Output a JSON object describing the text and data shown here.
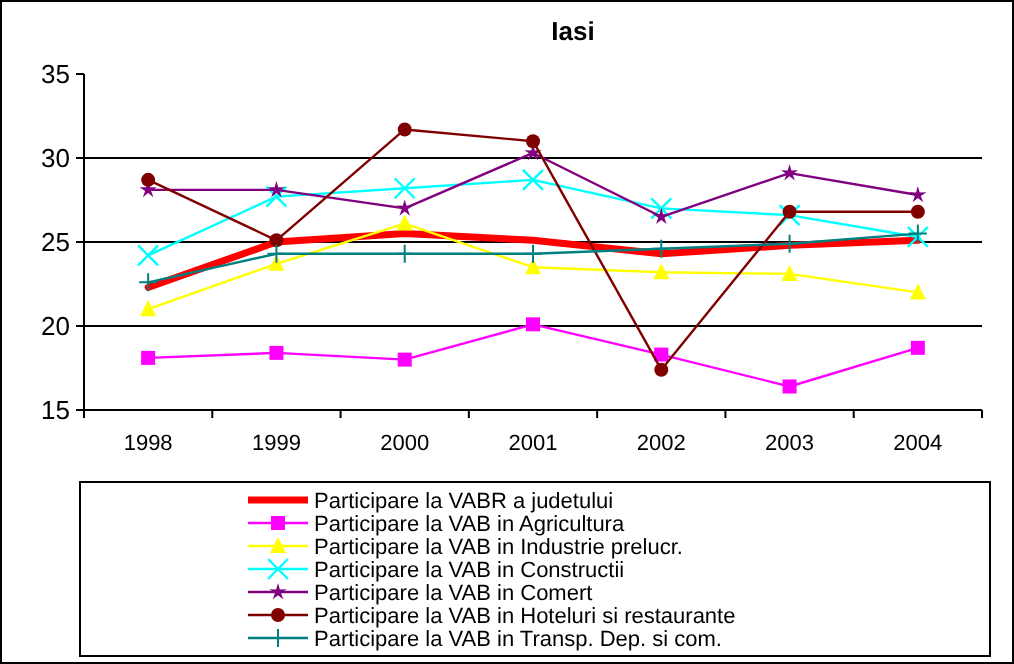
{
  "chart_data": {
    "type": "line",
    "title": "Iasi",
    "categories": [
      "1998",
      "1999",
      "2000",
      "2001",
      "2002",
      "2003",
      "2004"
    ],
    "ylim": [
      15,
      35
    ],
    "yticks": [
      15,
      20,
      25,
      30,
      35
    ],
    "grid": "y",
    "legend": "bottom",
    "series": [
      {
        "name": "Participare la VABR a judetului",
        "color": "#ff0000",
        "marker": "none",
        "values": [
          22.3,
          25.0,
          25.5,
          25.1,
          24.3,
          24.8,
          25.1
        ]
      },
      {
        "name": "Participare la VAB in Agricultura",
        "color": "#ff00ff",
        "marker": "square",
        "values": [
          18.1,
          18.4,
          18.0,
          20.1,
          18.3,
          16.4,
          18.7
        ]
      },
      {
        "name": "Participare la VAB in Industrie prelucr.",
        "color": "#ffff00",
        "marker": "triangle",
        "values": [
          21.0,
          23.7,
          26.1,
          23.5,
          23.2,
          23.1,
          22.0
        ]
      },
      {
        "name": "Participare la VAB in Constructii",
        "color": "#00ffff",
        "marker": "cross",
        "values": [
          24.2,
          27.7,
          28.2,
          28.7,
          27.0,
          26.6,
          25.3
        ]
      },
      {
        "name": "Participare la VAB in Comert",
        "color": "#800080",
        "marker": "star",
        "values": [
          28.1,
          28.1,
          27.0,
          30.3,
          26.5,
          29.1,
          27.8
        ]
      },
      {
        "name": "Participare la VAB in Hoteluri si restaurante",
        "color": "#800000",
        "marker": "circle",
        "values": [
          28.7,
          25.1,
          31.7,
          31.0,
          17.4,
          26.8,
          26.8
        ]
      },
      {
        "name": "Participare la VAB in Transp. Dep. si com.",
        "color": "#008080",
        "marker": "plus",
        "values": [
          22.6,
          24.3,
          24.3,
          24.3,
          24.6,
          24.9,
          25.5
        ]
      }
    ]
  }
}
